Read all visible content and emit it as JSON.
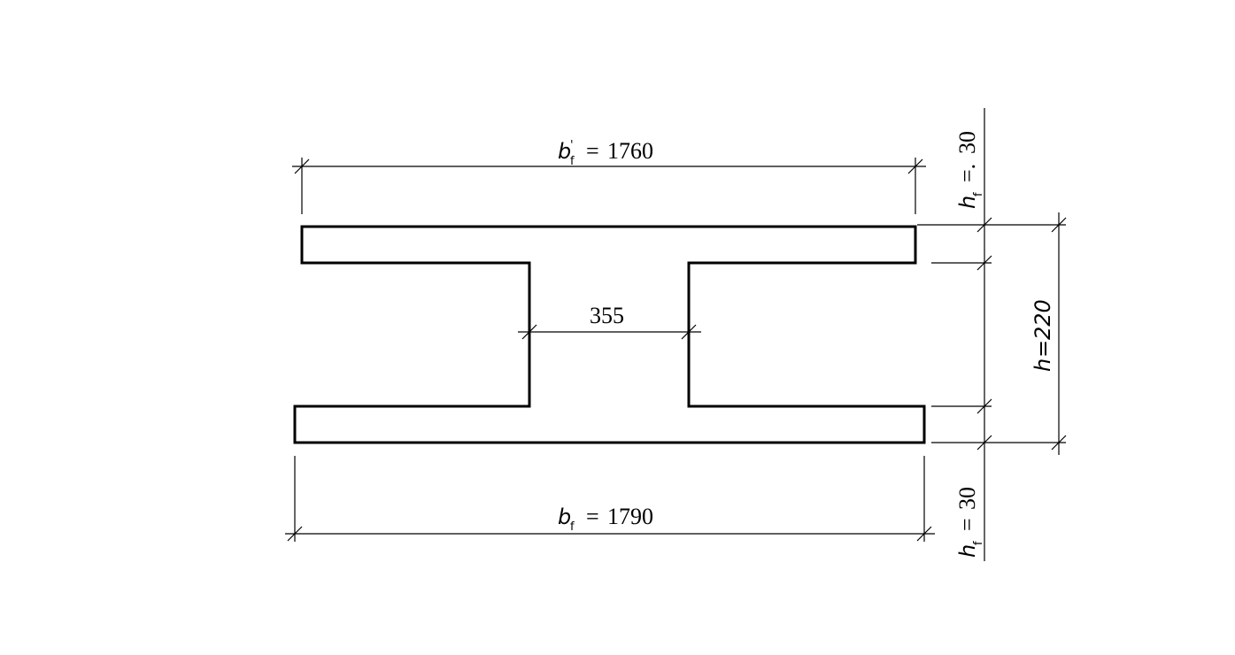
{
  "dimensions": {
    "top_flange_width": {
      "symbol": "b",
      "prime": "'",
      "subscript": "f",
      "equals": "=",
      "value": "1760"
    },
    "bottom_flange_width": {
      "symbol": "b",
      "subscript": "f",
      "equals": "=",
      "value": "1790"
    },
    "web_width": {
      "value": "355"
    },
    "total_height": {
      "symbol": "h",
      "equals": "=",
      "value": "220"
    },
    "top_flange_thickness": {
      "symbol": "h",
      "subscript": "f",
      "equals": "=.",
      "value": "30"
    },
    "bottom_flange_thickness": {
      "symbol": "h",
      "subscript": "f",
      "equals": "=",
      "value": "30"
    }
  }
}
